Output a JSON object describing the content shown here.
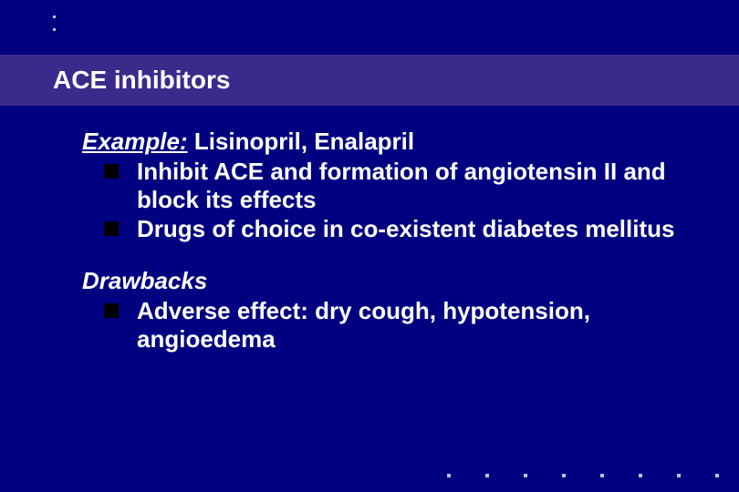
{
  "slide": {
    "title": "ACE inhibitors",
    "example_label": "Example:",
    "example_text": " Lisinopril, Enalapril",
    "bullets_main": [
      "Inhibit ACE and formation of angiotensin II and block its effects",
      "Drugs of choice in co-existent diabetes mellitus"
    ],
    "drawbacks_heading": "Drawbacks",
    "bullets_drawbacks": [
      "Adverse effect: dry cough, hypotension, angioedema"
    ]
  },
  "style": {
    "background_color": "#000080",
    "title_bar_color": "#3b2a8c",
    "text_color": "#ffffff",
    "bullet_marker_color": "#000000",
    "dot_color": "#c0c0d0",
    "title_fontsize": 28,
    "body_fontsize": 26,
    "font_family": "Arial"
  },
  "decorations": {
    "top_dot_count": 2,
    "bottom_dot_count": 8
  }
}
